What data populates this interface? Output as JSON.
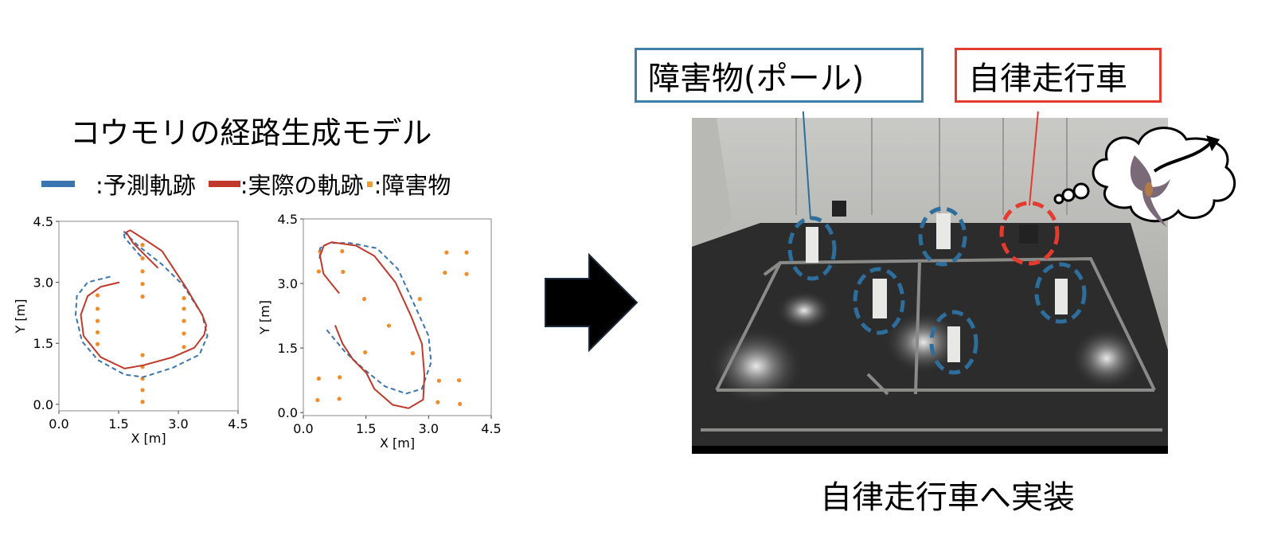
{
  "title": "コウモリの経路生成モデル",
  "legend": {
    "predicted": ":予測軌跡",
    "actual": ":実際の軌跡",
    "obstacle": ":障害物",
    "colors": {
      "predicted": "#3b75af",
      "actual": "#c0392b",
      "obstacle": "#ef8c2b"
    }
  },
  "photo_labels": {
    "obstacle": "障害物(ポール)",
    "vehicle": "自律走行車",
    "obstacle_color": "#3e7fa8",
    "vehicle_color": "#e53b2f"
  },
  "photo_icons": [
    "arrow-right-icon",
    "thought-cloud-icon",
    "bat-icon"
  ],
  "caption": "自律走行車へ実装",
  "chart_data": [
    {
      "type": "line",
      "xlabel": "X [m]",
      "ylabel": "Y [m]",
      "xlim": [
        0,
        4.5
      ],
      "ylim": [
        -0.16,
        4.5
      ],
      "xticks": [
        "0.0",
        "1.5",
        "3.0",
        "4.5"
      ],
      "yticks": [
        "0.0",
        "1.5",
        "3.0",
        "4.5"
      ],
      "grid": false,
      "series": [
        {
          "key": "predicted",
          "style": "dashed",
          "points": [
            [
              1.29,
              3.14
            ],
            [
              0.72,
              3.0
            ],
            [
              0.45,
              2.66
            ],
            [
              0.42,
              2.2
            ],
            [
              0.58,
              1.55
            ],
            [
              0.98,
              1.09
            ],
            [
              1.65,
              0.73
            ],
            [
              2.12,
              0.67
            ],
            [
              2.86,
              0.9
            ],
            [
              3.53,
              1.22
            ],
            [
              3.73,
              1.68
            ],
            [
              3.6,
              2.2
            ],
            [
              3.13,
              2.92
            ],
            [
              2.59,
              3.44
            ],
            [
              1.99,
              3.9
            ],
            [
              1.72,
              4.16
            ],
            [
              1.62,
              4.26
            ],
            [
              1.65,
              4.1
            ],
            [
              1.99,
              3.71
            ],
            [
              2.09,
              3.61
            ]
          ]
        },
        {
          "key": "actual",
          "style": "solid",
          "points": [
            [
              1.52,
              3.0
            ],
            [
              1.05,
              2.89
            ],
            [
              0.72,
              2.66
            ],
            [
              0.55,
              2.2
            ],
            [
              0.62,
              1.68
            ],
            [
              1.05,
              1.16
            ],
            [
              1.65,
              0.88
            ],
            [
              2.12,
              0.96
            ],
            [
              2.86,
              1.16
            ],
            [
              3.4,
              1.39
            ],
            [
              3.65,
              1.71
            ],
            [
              3.7,
              1.94
            ],
            [
              3.6,
              2.2
            ],
            [
              3.2,
              2.86
            ],
            [
              2.59,
              3.77
            ],
            [
              2.19,
              4.03
            ],
            [
              1.79,
              4.28
            ],
            [
              1.69,
              4.23
            ],
            [
              1.86,
              3.97
            ],
            [
              2.12,
              3.71
            ],
            [
              2.49,
              3.35
            ]
          ]
        }
      ],
      "obstacles": [
        [
          0.97,
          2.68
        ],
        [
          0.97,
          2.35
        ],
        [
          0.97,
          2.05
        ],
        [
          0.97,
          1.77
        ],
        [
          0.97,
          1.48
        ],
        [
          2.1,
          3.92
        ],
        [
          2.1,
          3.59
        ],
        [
          2.1,
          3.27
        ],
        [
          2.1,
          2.96
        ],
        [
          2.1,
          2.65
        ],
        [
          2.1,
          1.21
        ],
        [
          2.1,
          0.92
        ],
        [
          2.1,
          0.63
        ],
        [
          2.1,
          0.35
        ],
        [
          2.1,
          0.06
        ],
        [
          3.14,
          2.61
        ],
        [
          3.14,
          2.35
        ],
        [
          3.14,
          2.05
        ],
        [
          3.14,
          1.74
        ],
        [
          3.14,
          1.41
        ]
      ]
    },
    {
      "type": "line",
      "xlabel": "X [m]",
      "ylabel": "Y [m]",
      "xlim": [
        0,
        4.5
      ],
      "ylim": [
        -0.07,
        4.5
      ],
      "xticks": [
        "0.0",
        "1.5",
        "3.0",
        "4.5"
      ],
      "yticks": [
        "0.0",
        "1.5",
        "3.0",
        "4.5"
      ],
      "grid": false,
      "series": [
        {
          "key": "predicted",
          "style": "dashed",
          "points": [
            [
              0.56,
              1.92
            ],
            [
              1.0,
              1.41
            ],
            [
              1.45,
              1.01
            ],
            [
              1.95,
              0.61
            ],
            [
              2.46,
              0.44
            ],
            [
              2.84,
              0.55
            ],
            [
              3.06,
              1.17
            ],
            [
              3.0,
              1.78
            ],
            [
              2.71,
              2.4
            ],
            [
              2.27,
              3.33
            ],
            [
              1.76,
              3.82
            ],
            [
              1.13,
              3.94
            ],
            [
              0.62,
              3.94
            ],
            [
              0.4,
              3.82
            ],
            [
              0.39,
              3.57
            ]
          ]
        },
        {
          "key": "actual",
          "style": "solid",
          "points": [
            [
              0.86,
              2.77
            ],
            [
              0.65,
              3.02
            ],
            [
              0.48,
              3.23
            ],
            [
              0.4,
              3.64
            ],
            [
              0.49,
              3.88
            ],
            [
              0.68,
              3.96
            ],
            [
              1.26,
              3.88
            ],
            [
              1.7,
              3.64
            ],
            [
              2.21,
              3.02
            ],
            [
              2.59,
              2.22
            ],
            [
              2.84,
              1.6
            ],
            [
              2.9,
              0.86
            ],
            [
              2.87,
              0.3
            ],
            [
              2.52,
              0.1
            ],
            [
              2.14,
              0.18
            ],
            [
              1.7,
              0.55
            ],
            [
              1.51,
              0.92
            ],
            [
              1.19,
              1.23
            ],
            [
              0.94,
              1.6
            ],
            [
              0.76,
              2.03
            ]
          ]
        }
      ],
      "obstacles": [
        [
          0.4,
          3.74
        ],
        [
          0.93,
          3.75
        ],
        [
          0.37,
          3.28
        ],
        [
          0.95,
          3.27
        ],
        [
          1.46,
          2.64
        ],
        [
          2.79,
          2.64
        ],
        [
          2.05,
          2.02
        ],
        [
          1.48,
          1.4
        ],
        [
          2.62,
          1.38
        ],
        [
          0.37,
          0.79
        ],
        [
          0.87,
          0.82
        ],
        [
          0.34,
          0.29
        ],
        [
          0.86,
          0.32
        ],
        [
          3.43,
          3.72
        ],
        [
          3.91,
          3.72
        ],
        [
          3.39,
          3.25
        ],
        [
          3.91,
          3.22
        ],
        [
          3.25,
          0.74
        ],
        [
          3.73,
          0.75
        ],
        [
          3.22,
          0.24
        ],
        [
          3.75,
          0.2
        ]
      ]
    }
  ]
}
